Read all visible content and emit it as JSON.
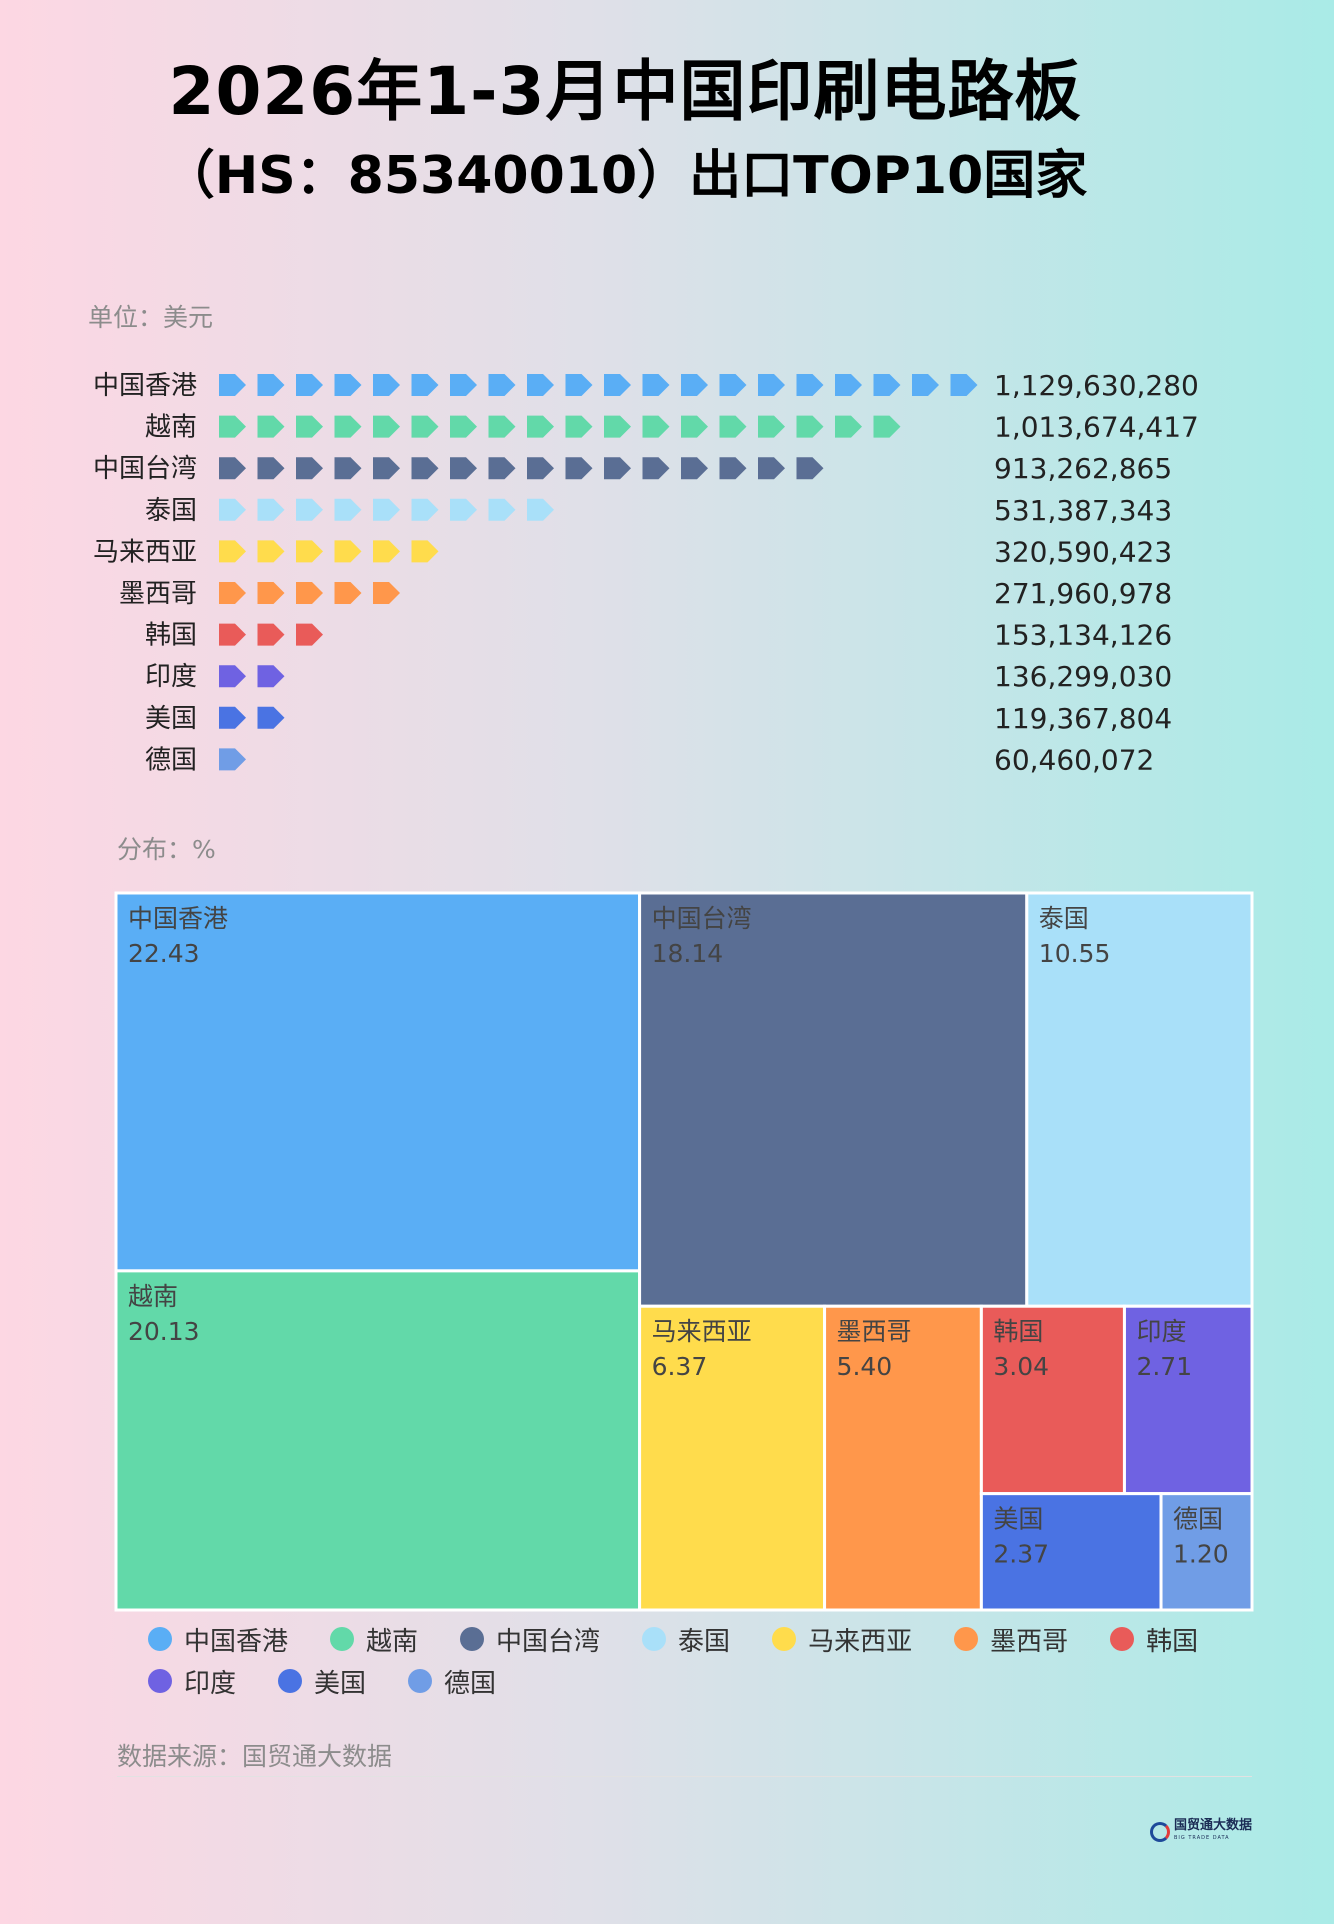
{
  "title_line1": "2026年1-3月中国印刷电路板",
  "title_line2": "（HS：85340010）出口TOP10国家",
  "unit_label": "单位：美元",
  "distribution_label": "分布：%",
  "source_label": "数据来源：国贸通大数据",
  "logo": {
    "text": "国贸通大数据",
    "subtitle": "BIG TRADE DATA"
  },
  "chart_data": [
    {
      "type": "bar",
      "subtype": "pictorial",
      "categories": [
        "中国香港",
        "越南",
        "中国台湾",
        "泰国",
        "马来西亚",
        "墨西哥",
        "韩国",
        "印度",
        "美国",
        "德国"
      ],
      "values": [
        1129630280,
        1013674417,
        913262865,
        531387343,
        320590423,
        271960978,
        153134126,
        136299030,
        119367804,
        60460072
      ],
      "value_labels": [
        "1,129,630,280",
        "1,013,674,417",
        "913,262,865",
        "531,387,343",
        "320,590,423",
        "271,960,978",
        "153,134,126",
        "136,299,030",
        "119,367,804",
        "60,460,072"
      ],
      "symbol_counts": [
        20,
        18,
        16,
        9,
        6,
        5,
        3,
        2,
        2,
        1
      ],
      "colors": [
        "#5aaef5",
        "#62d9a9",
        "#5a6e94",
        "#a9e0f9",
        "#ffdc4c",
        "#ff974b",
        "#e95b59",
        "#6f62e2",
        "#4a73e3",
        "#709de6"
      ]
    },
    {
      "type": "treemap",
      "categories": [
        "中国香港",
        "越南",
        "中国台湾",
        "泰国",
        "马来西亚",
        "墨西哥",
        "韩国",
        "印度",
        "美国",
        "德国"
      ],
      "values": [
        22.43,
        20.13,
        18.14,
        10.55,
        6.37,
        5.4,
        3.04,
        2.71,
        2.37,
        1.2
      ],
      "value_labels": [
        "22.43",
        "20.13",
        "18.14",
        "10.55",
        "6.37",
        "5.40",
        "3.04",
        "2.71",
        "2.37",
        "1.20"
      ],
      "colors": [
        "#5aaef5",
        "#62d9a9",
        "#5a6e94",
        "#a9e0f9",
        "#ffdc4c",
        "#ff974b",
        "#e95b59",
        "#6f62e2",
        "#4a73e3",
        "#709de6"
      ],
      "legend": [
        "中国香港",
        "越南",
        "中国台湾",
        "泰国",
        "马来西亚",
        "墨西哥",
        "韩国",
        "印度",
        "美国",
        "德国"
      ],
      "legend_position": "bottom"
    }
  ]
}
